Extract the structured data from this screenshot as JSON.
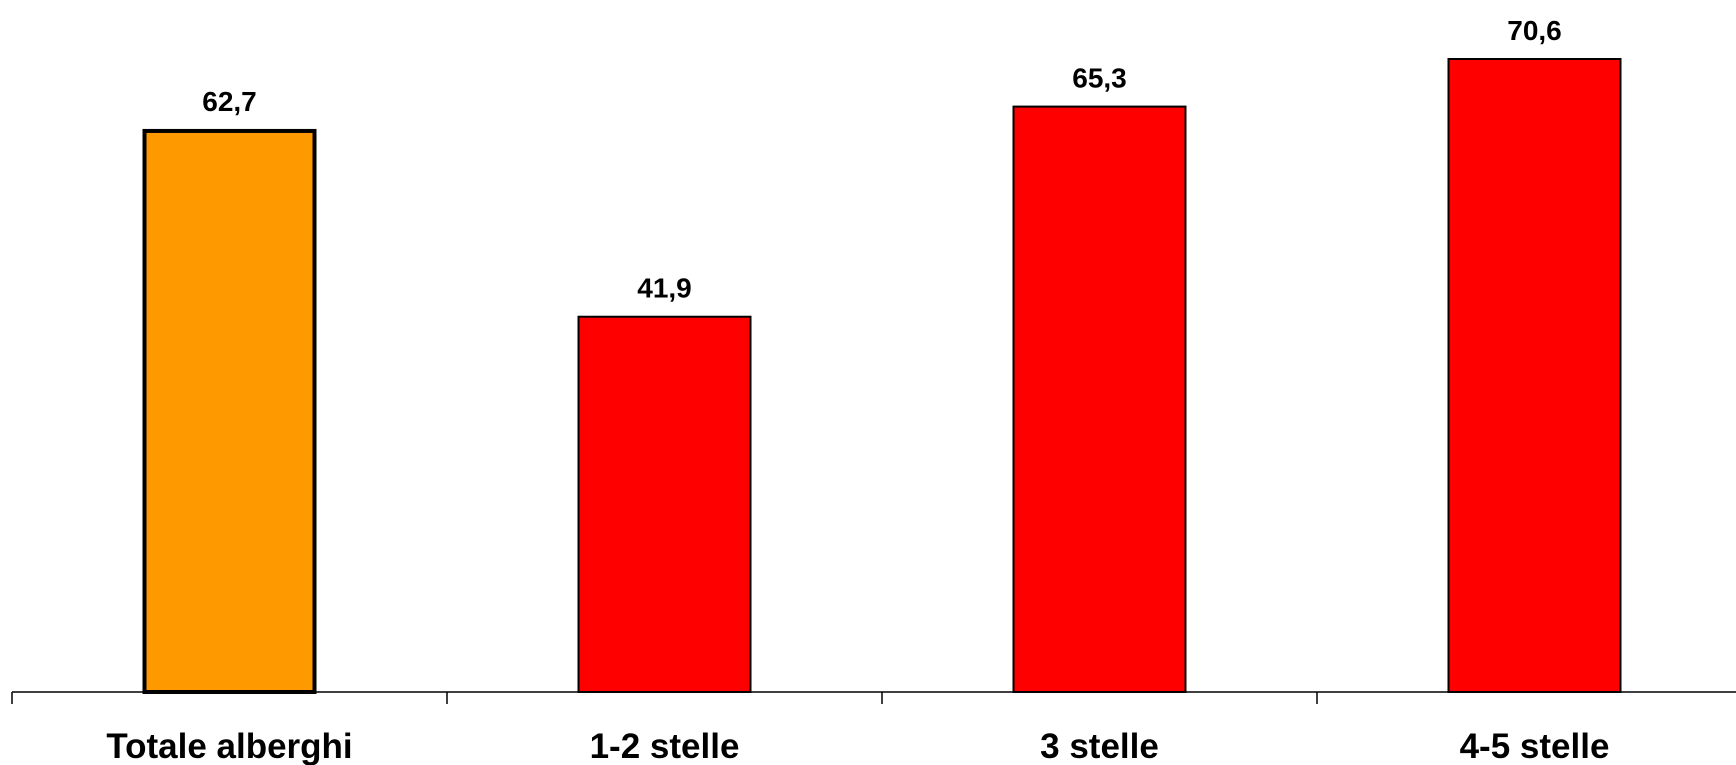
{
  "chart_data": {
    "type": "bar",
    "title": "",
    "xlabel": "",
    "ylabel": "",
    "categories": [
      "Totale alberghi",
      "1-2 stelle",
      "3 stelle",
      "4-5 stelle"
    ],
    "values": [
      62.7,
      41.9,
      65.3,
      70.6
    ],
    "value_labels": [
      "62,7",
      "41,9",
      "65,3",
      "70,6"
    ],
    "ylim": [
      0,
      70.6
    ],
    "grid": false,
    "legend": "none",
    "colors": [
      "#FF9900",
      "#FF0000",
      "#FF0000",
      "#FF0000"
    ],
    "border_widths": [
      4,
      2,
      2,
      2
    ]
  }
}
